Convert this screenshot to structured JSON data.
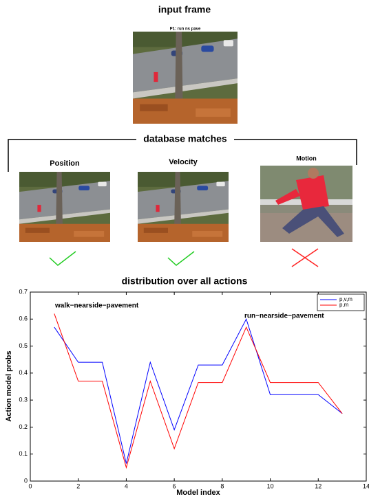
{
  "figure": {
    "input_title": "input frame",
    "frame_caption": "P1: run ns pave",
    "matches_title": "database matches",
    "matches": [
      "Position",
      "Velocity",
      "Motion"
    ]
  },
  "chart_data": {
    "type": "line",
    "title": "distribution over all actions",
    "xlabel": "Model index",
    "ylabel": "Action model probs",
    "x": [
      1,
      2,
      3,
      4,
      5,
      6,
      7,
      8,
      9,
      10,
      11,
      12,
      13
    ],
    "series": [
      {
        "name": "p,v,m",
        "color": "#0000ff",
        "values": [
          0.57,
          0.44,
          0.44,
          0.065,
          0.44,
          0.19,
          0.43,
          0.43,
          0.6,
          0.32,
          0.32,
          0.32,
          0.25
        ]
      },
      {
        "name": "p,m",
        "color": "#ff0000",
        "values": [
          0.62,
          0.37,
          0.37,
          0.05,
          0.37,
          0.12,
          0.365,
          0.365,
          0.57,
          0.365,
          0.365,
          0.365,
          0.25
        ]
      }
    ],
    "annotations": [
      {
        "text": "walk−nearside−pavement",
        "color": "#ff2020"
      },
      {
        "text": "run−nearside−pavement",
        "color": "#22cc22"
      }
    ],
    "xlim": [
      0,
      14
    ],
    "xticks": [
      0,
      2,
      4,
      6,
      8,
      10,
      12,
      14
    ],
    "ylim": [
      0,
      0.7
    ],
    "yticks": [
      0,
      0.1,
      0.2,
      0.3,
      0.4,
      0.5,
      0.6,
      0.7
    ],
    "grid": false,
    "legend_loc": "upper right"
  }
}
